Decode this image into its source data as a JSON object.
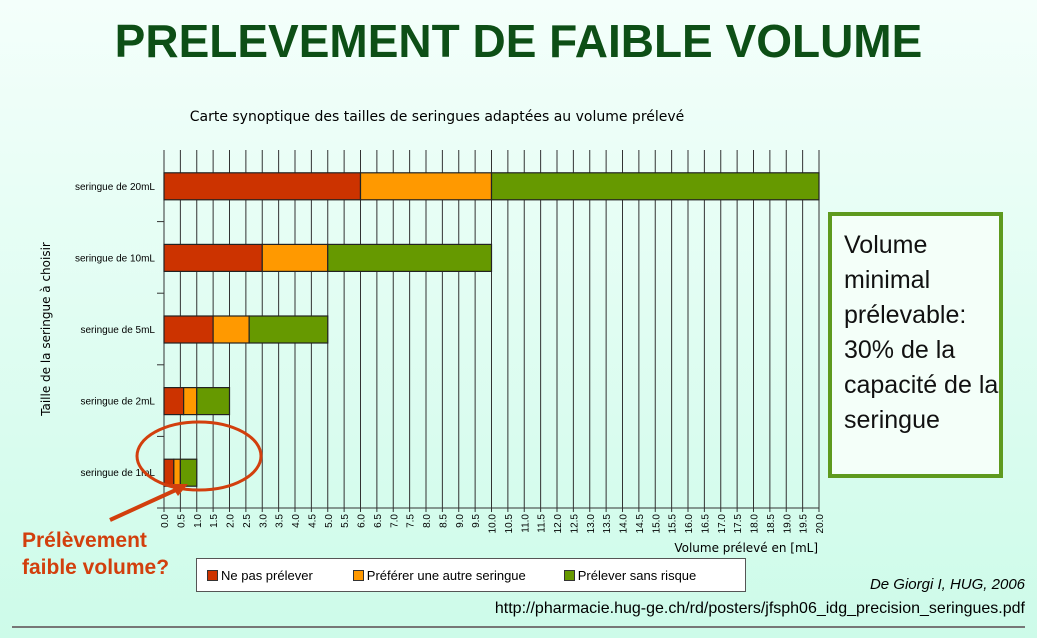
{
  "title": "PRELEVEMENT DE FAIBLE VOLUME",
  "chart_data": {
    "type": "bar",
    "orientation": "horizontal-stacked",
    "title": "Carte synoptique des tailles de seringues adaptées au volume prélevé",
    "xlabel": "Volume prélevé en [mL]",
    "ylabel": "Taille de la seringue à choisir",
    "xlim": [
      0,
      20
    ],
    "xtick_step": 0.5,
    "grid": true,
    "categories": [
      "seringue de 20mL",
      "seringue de 10mL",
      "seringue de 5mL",
      "seringue de 2mL",
      "seringue de 1mL"
    ],
    "series": [
      {
        "name": "Ne pas prélever",
        "color": "#cc3300",
        "values": [
          6,
          3,
          1.5,
          0.6,
          0.3
        ]
      },
      {
        "name": "Préférer une autre seringue",
        "color": "#ff9900",
        "values": [
          4,
          2,
          1.1,
          0.4,
          0.2
        ]
      },
      {
        "name": "Prélever sans risque",
        "color": "#669900",
        "values": [
          10,
          5,
          2.4,
          1,
          0.5
        ]
      }
    ],
    "legend_position": "bottom"
  },
  "box_text": "Volume minimal prélevable: 30% de la capacité de la seringue",
  "callout": "Prélèvement faible volume?",
  "credit": "De Giorgi I, HUG, 2006",
  "url": "http://pharmacie.hug-ge.ch/rd/posters/jfsph06_idg_precision_seringues.pdf"
}
